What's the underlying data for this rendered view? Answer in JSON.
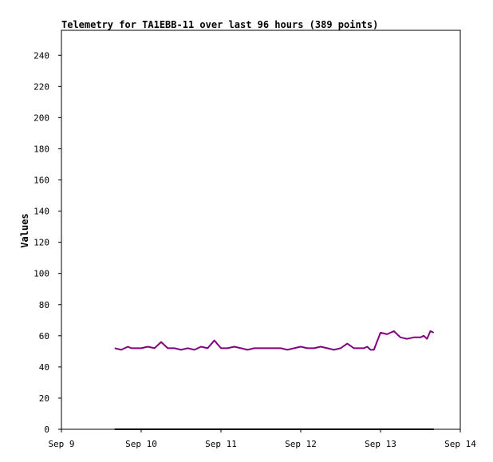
{
  "chart_data": {
    "type": "line",
    "title": "Telemetry for TA1EBB-11 over last 96 hours (389 points)",
    "xlabel": "",
    "ylabel": "Values",
    "x_ticks": [
      "Sep 9",
      "Sep 10",
      "Sep 11",
      "Sep 12",
      "Sep 13",
      "Sep 14"
    ],
    "xlim": [
      "Sep 9",
      "Sep 14"
    ],
    "y_ticks": [
      0,
      20,
      40,
      60,
      80,
      100,
      120,
      140,
      160,
      180,
      200,
      220,
      240
    ],
    "ylim": [
      0,
      256
    ],
    "grid": false,
    "legend": "none",
    "series": [
      {
        "color": "#800080",
        "x": [
          "Sep 9 16:00",
          "Sep 9 18:00",
          "Sep 9 20:00",
          "Sep 9 21:00",
          "Sep 9 22:00",
          "Sep 10 00:00",
          "Sep 10 02:00",
          "Sep 10 04:00",
          "Sep 10 06:00",
          "Sep 10 08:00",
          "Sep 10 09:00",
          "Sep 10 10:00",
          "Sep 10 12:00",
          "Sep 10 14:00",
          "Sep 10 16:00",
          "Sep 10 18:00",
          "Sep 10 20:00",
          "Sep 10 22:00",
          "Sep 11 00:00",
          "Sep 11 02:00",
          "Sep 11 04:00",
          "Sep 11 06:00",
          "Sep 11 08:00",
          "Sep 11 10:00",
          "Sep 11 12:00",
          "Sep 11 14:00",
          "Sep 11 16:00",
          "Sep 11 18:00",
          "Sep 11 20:00",
          "Sep 11 22:00",
          "Sep 12 00:00",
          "Sep 12 02:00",
          "Sep 12 04:00",
          "Sep 12 06:00",
          "Sep 12 08:00",
          "Sep 12 10:00",
          "Sep 12 12:00",
          "Sep 12 14:00",
          "Sep 12 16:00",
          "Sep 12 18:00",
          "Sep 12 19:00",
          "Sep 12 20:00",
          "Sep 12 21:00",
          "Sep 12 22:00",
          "Sep 13 00:00",
          "Sep 13 02:00",
          "Sep 13 04:00",
          "Sep 13 06:00",
          "Sep 13 08:00",
          "Sep 13 10:00",
          "Sep 13 12:00",
          "Sep 13 13:00",
          "Sep 13 14:00",
          "Sep 13 15:00",
          "Sep 13 16:00"
        ],
        "values": [
          52,
          51,
          53,
          52,
          52,
          52,
          53,
          52,
          56,
          52,
          52,
          52,
          51,
          52,
          51,
          53,
          52,
          57,
          52,
          52,
          53,
          52,
          51,
          52,
          52,
          52,
          52,
          52,
          51,
          52,
          53,
          52,
          52,
          53,
          52,
          51,
          52,
          55,
          52,
          52,
          52,
          53,
          51,
          51,
          62,
          61,
          63,
          59,
          58,
          59,
          59,
          60,
          58,
          63,
          62
        ]
      },
      {
        "color": "#000000",
        "x": [
          "Sep 9 16:00",
          "Sep 13 16:00"
        ],
        "values": [
          0,
          0
        ]
      }
    ]
  }
}
